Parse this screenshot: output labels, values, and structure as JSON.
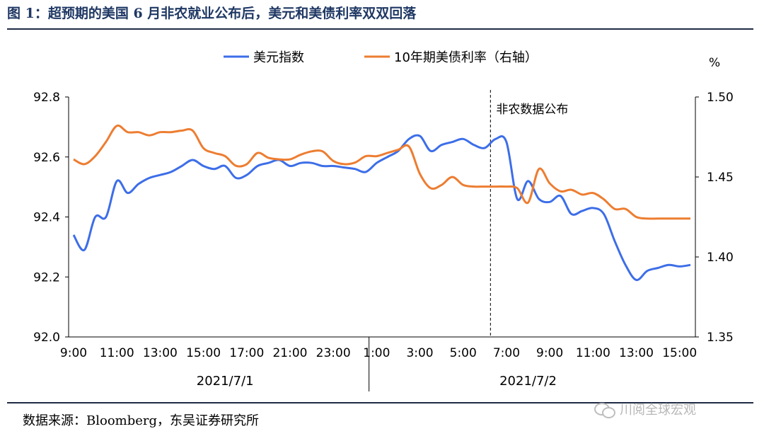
{
  "title": "图 1：超预期的美国 6 月非农就业公布后，美元和美债利率双双回落",
  "source": "数据来源：Bloomberg，东吴证券研究所",
  "watermark": "川阅全球宏观",
  "colors": {
    "usd": "#3d6ee8",
    "yield": "#ed7d31",
    "title": "#1f3864"
  },
  "chart_data": {
    "type": "line",
    "right_axis_unit": "%",
    "annotation": "非农数据公布",
    "annotation_x_index": 38,
    "left_axis": {
      "ylim": [
        92.0,
        92.8
      ],
      "ticks": [
        "92.0",
        "92.2",
        "92.4",
        "92.6",
        "92.8"
      ]
    },
    "right_axis": {
      "ylim": [
        1.35,
        1.5
      ],
      "ticks": [
        "1.35",
        "1.40",
        "1.45",
        "1.50"
      ]
    },
    "x_tick_labels": [
      "9:00",
      "11:00",
      "13:00",
      "15:00",
      "17:00",
      "21:00",
      "23:00",
      "1:00",
      "3:00",
      "5:00",
      "7:00",
      "9:00",
      "11:00",
      "13:00",
      "15:00"
    ],
    "x_tick_indices": [
      0,
      4,
      8,
      12,
      16,
      20,
      24,
      28,
      32,
      36,
      40,
      44,
      48,
      52,
      56
    ],
    "date_labels": [
      {
        "label": "2021/7/1",
        "x_index": 14
      },
      {
        "label": "2021/7/2",
        "x_index": 42
      }
    ],
    "date_divider_index": 27.3,
    "series": [
      {
        "name": "美元指数",
        "axis": "left",
        "values": [
          92.34,
          92.29,
          92.4,
          92.4,
          92.52,
          92.48,
          92.51,
          92.53,
          92.54,
          92.55,
          92.57,
          92.59,
          92.57,
          92.56,
          92.57,
          92.53,
          92.54,
          92.57,
          92.58,
          92.59,
          92.57,
          92.58,
          92.58,
          92.57,
          92.57,
          92.565,
          92.56,
          92.55,
          92.58,
          92.6,
          92.62,
          92.66,
          92.67,
          92.62,
          92.64,
          92.65,
          92.66,
          92.64,
          92.63,
          92.66,
          92.65,
          92.46,
          92.52,
          92.46,
          92.45,
          92.47,
          92.41,
          92.42,
          92.43,
          92.41,
          92.32,
          92.24,
          92.19,
          92.22,
          92.23,
          92.24,
          92.235,
          92.24
        ]
      },
      {
        "name": "10年期美债利率（右轴）",
        "axis": "right",
        "values": [
          1.461,
          1.458,
          1.463,
          1.472,
          1.482,
          1.478,
          1.478,
          1.476,
          1.478,
          1.478,
          1.479,
          1.479,
          1.468,
          1.465,
          1.463,
          1.457,
          1.458,
          1.465,
          1.462,
          1.461,
          1.461,
          1.464,
          1.466,
          1.466,
          1.46,
          1.458,
          1.459,
          1.463,
          1.463,
          1.465,
          1.467,
          1.469,
          1.452,
          1.443,
          1.445,
          1.45,
          1.445,
          1.444,
          1.444,
          1.444,
          1.444,
          1.443,
          1.434,
          1.455,
          1.446,
          1.441,
          1.442,
          1.439,
          1.44,
          1.436,
          1.43,
          1.43,
          1.425,
          1.424,
          1.424,
          1.424,
          1.424,
          1.424
        ]
      }
    ]
  }
}
